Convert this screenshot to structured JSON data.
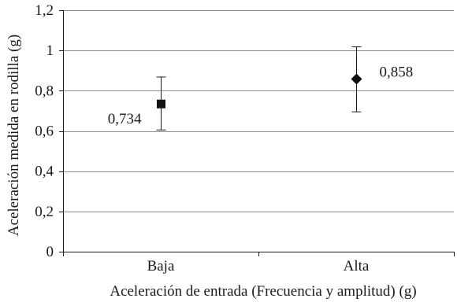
{
  "chart_data": {
    "type": "scatter",
    "title": "",
    "xlabel": "Aceleración de entrada (Frecuencia y amplitud) (g)",
    "ylabel": "Aceleración medida en  rodilla (g)",
    "ylim": [
      0,
      1.2
    ],
    "yticks": [
      0,
      0.2,
      0.4,
      0.6,
      0.8,
      1,
      1.2
    ],
    "ytick_labels": [
      "0",
      "0,2",
      "0,4",
      "0,6",
      "0,8",
      "1",
      "1,2"
    ],
    "categories": [
      "Baja",
      "Alta"
    ],
    "grid": true,
    "points": [
      {
        "category": "Baja",
        "value": 0.734,
        "error_low": 0.605,
        "error_high": 0.868,
        "marker": "square",
        "label": "0,734",
        "label_position": "left"
      },
      {
        "category": "Alta",
        "value": 0.858,
        "error_low": 0.695,
        "error_high": 1.018,
        "marker": "diamond",
        "label": "0,858",
        "label_position": "right"
      }
    ]
  }
}
